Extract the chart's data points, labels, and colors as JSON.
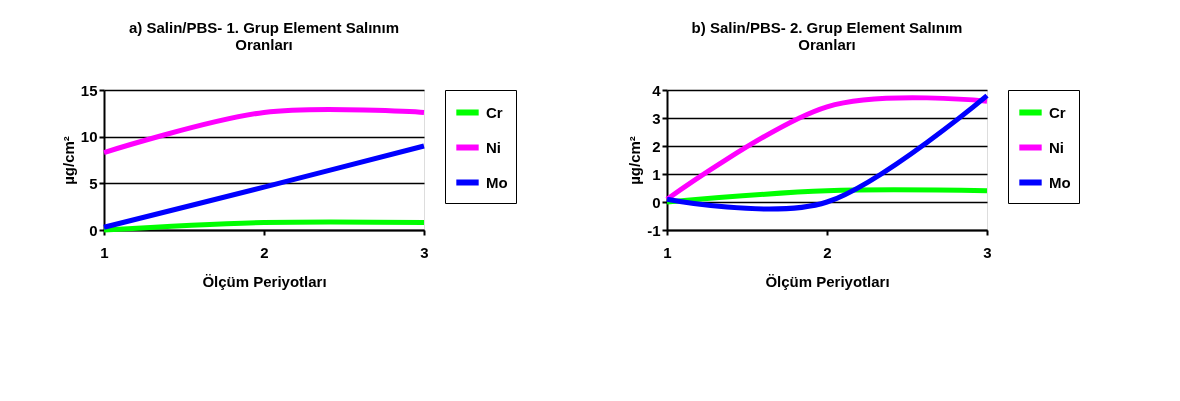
{
  "chart_data": [
    {
      "type": "line",
      "title": "a) Salin/PBS- 1. Grup Element Salınım Oranları",
      "xlabel": "Ölçüm Periyotları",
      "ylabel": "µg/cm²",
      "x": [
        1,
        2,
        3
      ],
      "xlim": [
        1,
        3
      ],
      "xticks": [
        1,
        2,
        3
      ],
      "ylim": [
        0,
        15
      ],
      "yticks": [
        0,
        5,
        10,
        15
      ],
      "grid": "y",
      "legend": "right",
      "series": [
        {
          "name": "Cr",
          "color": "#00ff00",
          "values": [
            0,
            0.8,
            0.8
          ]
        },
        {
          "name": "Ni",
          "color": "#ff00ff",
          "values": [
            8.3,
            12.6,
            12.6
          ]
        },
        {
          "name": "Mo",
          "color": "#0000ff",
          "values": [
            0.3,
            4.6,
            9
          ]
        }
      ]
    },
    {
      "type": "line",
      "title": "b) Salin/PBS- 2. Grup Element Salınım Oranları",
      "xlabel": "Ölçüm Periyotları",
      "ylabel": "µg/cm²",
      "x": [
        1,
        2,
        3
      ],
      "xlim": [
        1,
        3
      ],
      "xticks": [
        1,
        2,
        3
      ],
      "ylim": [
        -1,
        4
      ],
      "yticks": [
        -1,
        0,
        1,
        2,
        3,
        4
      ],
      "grid": "y",
      "legend": "right",
      "series": [
        {
          "name": "Cr",
          "color": "#00ff00",
          "values": [
            0,
            0.4,
            0.4
          ]
        },
        {
          "name": "Ni",
          "color": "#ff00ff",
          "values": [
            0.1,
            3.4,
            3.6
          ]
        },
        {
          "name": "Mo",
          "color": "#0000ff",
          "values": [
            0.1,
            0,
            3.8
          ]
        }
      ]
    }
  ]
}
